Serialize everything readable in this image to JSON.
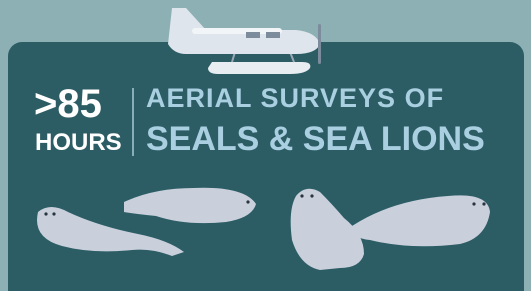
{
  "headline": {
    "number": ">85",
    "unit": "HOURS",
    "line1": "AERIAL SURVEYS OF",
    "line2": "SEALS & SEA LIONS"
  }
}
